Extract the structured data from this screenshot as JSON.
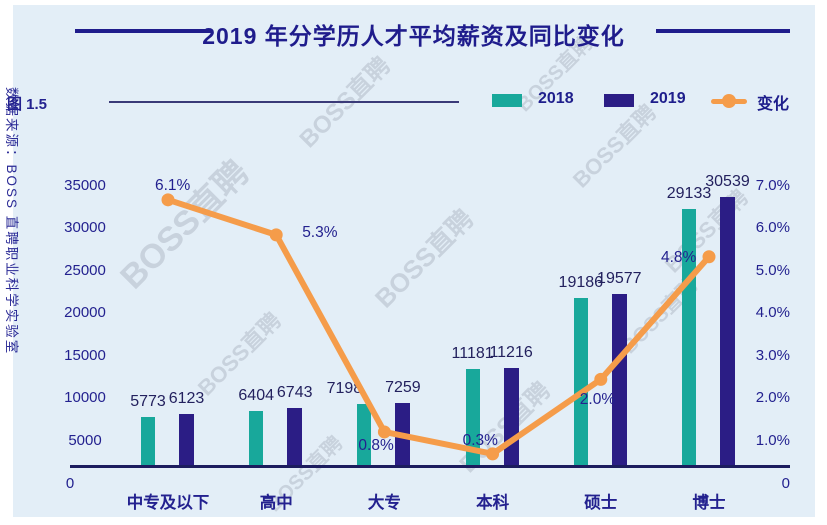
{
  "title": "2019 年分学历人才平均薪资及同比变化",
  "figure_label": "图 1.5",
  "source_note": "数据来源：BOSS 直聘职业科学实验室",
  "watermark_text": "BOSS直聘",
  "legend": {
    "s2018": "2018",
    "s2019": "2019",
    "change": "变化"
  },
  "colors": {
    "bar_2018": "#18a89b",
    "bar_2019": "#2b1d85",
    "line_change": "#f59c4a",
    "title_text": "#1f1c8c",
    "axis_text": "#23218f",
    "canvas_bg": "#e3eef7"
  },
  "chart_data": {
    "type": "bar",
    "title": "2019 年分学历人才平均薪资及同比变化",
    "categories": [
      "中专及以下",
      "高中",
      "大专",
      "本科",
      "硕士",
      "博士"
    ],
    "series": [
      {
        "name": "2018",
        "values": [
          5773,
          6404,
          7198,
          11181,
          19186,
          29133
        ]
      },
      {
        "name": "2019",
        "values": [
          6123,
          6743,
          7259,
          11216,
          19577,
          30539
        ]
      }
    ],
    "line_series": {
      "name": "变化",
      "type": "line",
      "values_pct": [
        6.1,
        5.3,
        0.8,
        0.3,
        2.0,
        4.8
      ],
      "labels": [
        "6.1%",
        "5.3%",
        "0.8%",
        "0.3%",
        "2.0%",
        "4.8%"
      ]
    },
    "left_axis": {
      "ticks": [
        "35000",
        "30000",
        "25000",
        "20000",
        "15000",
        "10000",
        "5000",
        "0"
      ],
      "range": [
        0,
        35000
      ]
    },
    "right_axis": {
      "ticks": [
        "7.0%",
        "6.0%",
        "5.0%",
        "4.0%",
        "3.0%",
        "2.0%",
        "1.0%",
        "0"
      ],
      "range_pct": [
        0,
        7
      ]
    },
    "legend_position": "top",
    "grid": false
  }
}
